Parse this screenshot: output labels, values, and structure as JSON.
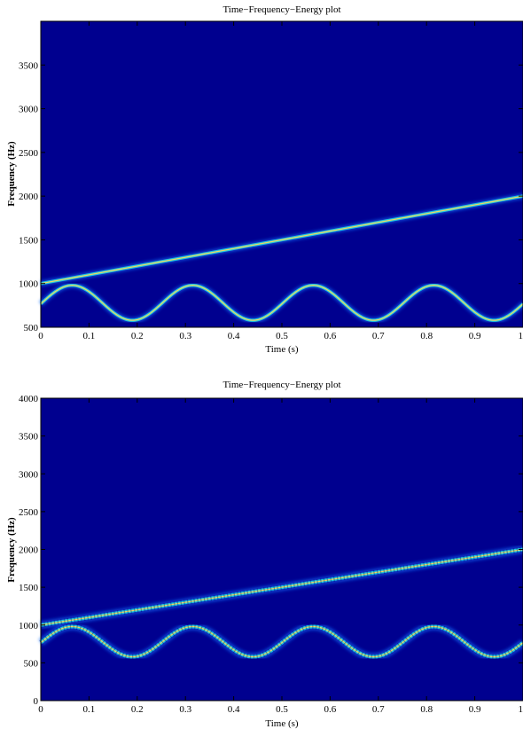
{
  "chart_data": [
    {
      "type": "heatmap",
      "title": "Time−Frequency−Energy plot",
      "xlabel": "Time (s)",
      "ylabel": "Frequency (Hz)",
      "xlim": [
        0,
        1
      ],
      "ylim": [
        500,
        4000
      ],
      "xticks": [
        "0",
        "0.1",
        "0.2",
        "0.3",
        "0.4",
        "0.5",
        "0.6",
        "0.7",
        "0.8",
        "0.9",
        "1"
      ],
      "yticks": [
        "500",
        "1000",
        "1500",
        "2000",
        "2500",
        "3000",
        "3500"
      ],
      "background_color": "#00008f",
      "colormap": "jet",
      "series": [
        {
          "kind": "linear-chirp",
          "f_start": 1000,
          "f_end": 2000
        },
        {
          "kind": "sinusoidal-fm",
          "f_center": 780,
          "f_amplitude": 200,
          "period_s": 0.25,
          "min_at_s": 0.19
        }
      ]
    },
    {
      "type": "heatmap",
      "title": "Time−Frequency−Energy plot",
      "xlabel": "Time (s)",
      "ylabel": "Frequency (Hz)",
      "xlim": [
        0,
        1
      ],
      "ylim": [
        0,
        4000
      ],
      "xticks": [
        "0",
        "0.1",
        "0.2",
        "0.3",
        "0.4",
        "0.5",
        "0.6",
        "0.7",
        "0.8",
        "0.9",
        "1"
      ],
      "yticks": [
        "0",
        "500",
        "1000",
        "1500",
        "2000",
        "2500",
        "3000",
        "3500",
        "4000"
      ],
      "background_color": "#00008f",
      "colormap": "jet",
      "series": [
        {
          "kind": "linear-chirp",
          "f_start": 1000,
          "f_end": 2000
        },
        {
          "kind": "sinusoidal-fm",
          "f_center": 780,
          "f_amplitude": 200,
          "period_s": 0.25,
          "min_at_s": 0.19
        }
      ]
    }
  ]
}
